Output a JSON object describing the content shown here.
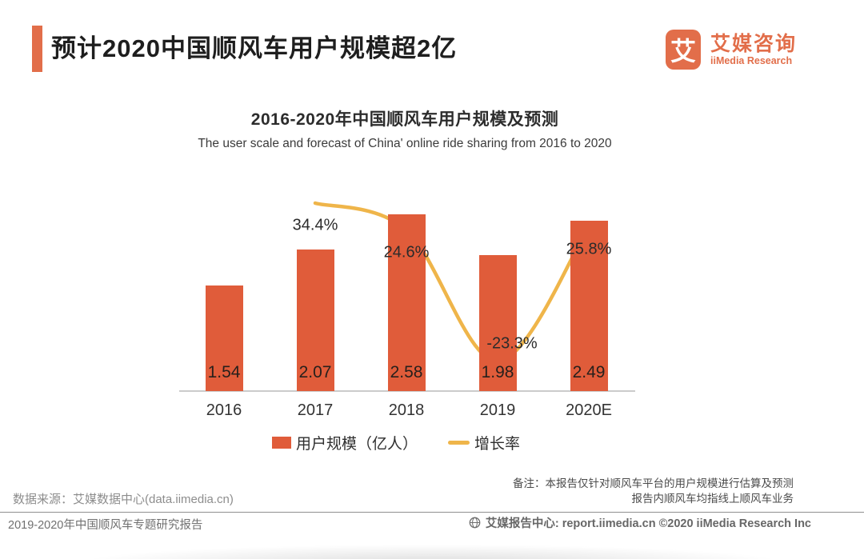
{
  "header": {
    "title": "预计2020中国顺风车用户规模超2亿",
    "logo": {
      "glyph": "艾",
      "brand_cn": "艾媒咨询",
      "brand_en": "iiMedia Research"
    }
  },
  "chart": {
    "title": "2016-2020年中国顺风车用户规模及预测",
    "subtitle": "The user scale and forecast of China' online ride sharing  from 2016 to 2020",
    "legend": [
      {
        "label": "用户规模（亿人）"
      },
      {
        "label": "增长率"
      }
    ]
  },
  "chart_data": {
    "type": "bar",
    "title": "2016-2020年中国顺风车用户规模及预测",
    "categories": [
      "2016",
      "2017",
      "2018",
      "2019",
      "2020E"
    ],
    "series": [
      {
        "name": "用户规模（亿人）",
        "type": "bar",
        "unit": "亿人",
        "values": [
          1.54,
          2.07,
          2.58,
          1.98,
          2.49
        ],
        "color": "#e05c3a"
      },
      {
        "name": "增长率",
        "type": "line",
        "unit": "%",
        "values": [
          null,
          34.4,
          24.6,
          -23.3,
          25.8
        ],
        "color": "#efb54a"
      }
    ],
    "value_labels": [
      "1.54",
      "2.07",
      "2.58",
      "1.98",
      "2.49"
    ],
    "growth_labels": [
      "",
      "34.4%",
      "24.6%",
      "-23.3%",
      "25.8%"
    ],
    "xlabel": "",
    "ylabel": "",
    "grid": false,
    "legend_position": "bottom",
    "axes_shown": [
      "x"
    ]
  },
  "source": {
    "text": "数据来源：艾媒数据中心(data.iimedia.cn)"
  },
  "note": {
    "line1": "备注：本报告仅针对顺风车平台的用户规模进行估算及预测",
    "line2": "报告内顺风车均指线上顺风车业务"
  },
  "footer": {
    "left": "2019-2020年中国顺风车专题研究报告",
    "right": "艾媒报告中心: report.iimedia.cn  ©2020  iiMedia Research Inc"
  },
  "colors": {
    "accent": "#e26e4a",
    "bar": "#e05c3a",
    "line": "#efb54a"
  }
}
